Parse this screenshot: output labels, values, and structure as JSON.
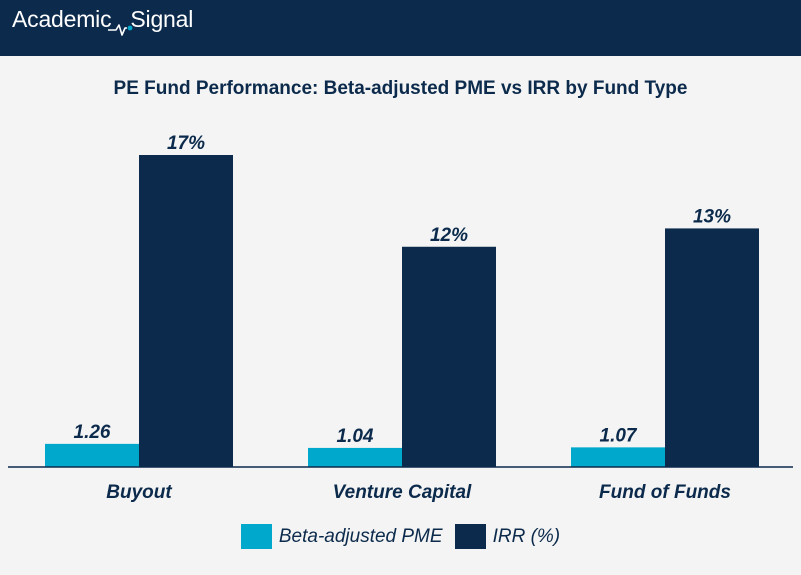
{
  "brand": {
    "name_part1": "Academic",
    "name_part2": "Signal"
  },
  "colors": {
    "header_bg": "#0c2a4c",
    "pme": "#00a8cc",
    "irr": "#0c2a4c",
    "text": "#0c2a4c",
    "background": "#f3f4f3"
  },
  "chart_data": {
    "type": "bar",
    "title": "PE Fund Performance: Beta-adjusted PME vs IRR by Fund Type",
    "categories": [
      "Buyout",
      "Venture Capital",
      "Fund of Funds"
    ],
    "series": [
      {
        "name": "Beta-adjusted PME",
        "values": [
          1.26,
          1.04,
          1.07
        ],
        "labels": [
          "1.26",
          "1.04",
          "1.07"
        ],
        "color": "#00a8cc"
      },
      {
        "name": "IRR (%)",
        "values": [
          17,
          12,
          13
        ],
        "labels": [
          "17%",
          "12%",
          "13%"
        ],
        "color": "#0c2a4c"
      }
    ],
    "xlabel": "",
    "ylabel": "",
    "ylim": [
      0,
      18
    ],
    "grid": false,
    "legend_position": "bottom-center"
  }
}
